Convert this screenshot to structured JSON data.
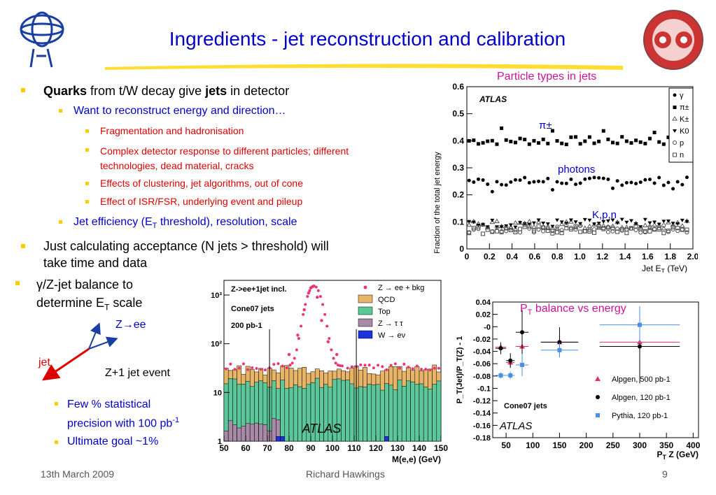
{
  "slide": {
    "title": "Ingredients - jet reconstruction and calibration",
    "footer": {
      "date": "13th March 2009",
      "author": "Richard Hawkings",
      "page": "9"
    }
  },
  "bullets": {
    "b1_bold": "Quarks",
    "b1_mid": " from t/W decay give ",
    "b1_bold2": "jets",
    "b1_end": " in detector",
    "b2": "Want to reconstruct energy and direction…",
    "b3a": "Fragmentation and hadronisation",
    "b3b_line1": "Complex detector response to different particles; different",
    "b3b_line2": "technologies, dead material, cracks",
    "b3c": "Effects of clustering, jet algorithms, out of cone",
    "b3d": "Effect of ISR/FSR, underlying event and pileup",
    "b4_pre": "Jet efficiency (E",
    "b4_sub": "T",
    "b4_post": " threshold), resolution, scale",
    "b5_line1": "Just calculating acceptance (N jets > threshold) will",
    "b5_line2": "take time and data",
    "b6_line1": "γ/Z-jet balance to",
    "b6_line2_pre": "determine E",
    "b6_line2_sub": "T",
    "b6_line2_post": " scale",
    "b7_line1": "Few % statistical",
    "b7_line2": "precision with 100 pb",
    "b7_sup": "-1",
    "b8": "Ultimate goal ~1%"
  },
  "sketch": {
    "zee": "Z→ee",
    "jet": "jet",
    "caption": "Z+1 jet event"
  },
  "chart_data": [
    {
      "type": "scatter",
      "title": "Particle types in jets",
      "xlabel": "Jet E",
      "xlabel_sub": "T",
      "xlabel_unit": " (TeV)",
      "ylabel": "Fraction of the total jet energy",
      "xlim": [
        0,
        2.0
      ],
      "ylim": [
        0,
        0.6
      ],
      "xticks": [
        "0",
        "0.2",
        "0.4",
        "0.6",
        "0.8",
        "1.0",
        "1.2",
        "1.4",
        "1.6",
        "1.8",
        "2.0"
      ],
      "yticks": [
        "0",
        "0.1",
        "0.2",
        "0.3",
        "0.4",
        "0.5",
        "0.6"
      ],
      "atlas": "ATLAS",
      "annotations": {
        "pi": "π±",
        "photons": "photons",
        "kpn": "K,p,n"
      },
      "legend": [
        "γ",
        "π±",
        "K±",
        "K0",
        "p",
        "n"
      ],
      "series": [
        {
          "name": "π±",
          "mean": 0.4
        },
        {
          "name": "γ",
          "mean": 0.25
        },
        {
          "name": "K±",
          "mean": 0.09
        },
        {
          "name": "K0",
          "mean": 0.095
        },
        {
          "name": "p",
          "mean": 0.075
        },
        {
          "name": "n",
          "mean": 0.07
        }
      ]
    },
    {
      "type": "bar",
      "title": "Z->ee+1jet incl.",
      "sub1": "Cone07 jets",
      "sub2": "200 pb-1",
      "xlabel": "M(e,e) (GeV)",
      "xlim": [
        50,
        150
      ],
      "ylim": [
        1,
        2000
      ],
      "log_y": true,
      "xticks": [
        "50",
        "60",
        "70",
        "80",
        "90",
        "100",
        "110",
        "120",
        "130",
        "140",
        "150"
      ],
      "yticks": [
        "1",
        "10",
        "10²",
        "10³"
      ],
      "atlas": "ATLAS",
      "legend": [
        "Z → ee + bkg",
        "QCD",
        "Top",
        "Z → τ τ",
        "W → eν"
      ],
      "colors": {
        "qcd": "#e8b468",
        "top": "#5cc899",
        "ztautau": "#a68aa6",
        "wenu": "#1a33dd",
        "points": "#ee3377"
      },
      "peak_points": [
        {
          "x": 80,
          "y": 60
        },
        {
          "x": 84,
          "y": 150
        },
        {
          "x": 87,
          "y": 500
        },
        {
          "x": 89,
          "y": 1100
        },
        {
          "x": 90,
          "y": 1400
        },
        {
          "x": 91,
          "y": 1500
        },
        {
          "x": 93,
          "y": 900
        },
        {
          "x": 95,
          "y": 300
        },
        {
          "x": 98,
          "y": 110
        },
        {
          "x": 102,
          "y": 60
        }
      ]
    },
    {
      "type": "scatter",
      "title": "P",
      "title_sub": "T",
      "title_post": " balance vs energy",
      "ylabel": "P_T(Jet)/P_T(Z) - 1",
      "xlabel": "P",
      "xlabel_sub": "T",
      "xlabel_post": " Z (GeV)",
      "xlim": [
        25,
        410
      ],
      "ylim": [
        -0.18,
        0.04
      ],
      "xticks": [
        "50",
        "100",
        "150",
        "200",
        "250",
        "300",
        "350",
        "400"
      ],
      "yticks": [
        "0.04",
        "0.02",
        "-0",
        "-0.02",
        "-0.04",
        "-0.06",
        "-0.08",
        "-0.1",
        "-0.12",
        "-0.14",
        "-0.16",
        "-0.18"
      ],
      "atlas": "ATLAS",
      "jets_label": "Cone07 jets",
      "series": [
        {
          "name": "Alpgen, 500 pb-1",
          "color": "#e0306e",
          "points": [
            {
              "x": 40,
              "y": -0.033
            },
            {
              "x": 58,
              "y": -0.058
            },
            {
              "x": 80,
              "y": -0.032
            },
            {
              "x": 150,
              "y": -0.025
            },
            {
              "x": 300,
              "y": -0.025
            }
          ]
        },
        {
          "name": "Alpgen, 120 pb-1",
          "color": "#000000",
          "points": [
            {
              "x": 40,
              "y": -0.035
            },
            {
              "x": 58,
              "y": -0.055
            },
            {
              "x": 80,
              "y": -0.009
            },
            {
              "x": 150,
              "y": -0.025
            },
            {
              "x": 300,
              "y": -0.032
            }
          ]
        },
        {
          "name": "Pythia, 120 pb-1",
          "color": "#4d8fe6",
          "points": [
            {
              "x": 40,
              "y": -0.079
            },
            {
              "x": 58,
              "y": -0.079
            },
            {
              "x": 80,
              "y": -0.062
            },
            {
              "x": 150,
              "y": -0.038
            },
            {
              "x": 300,
              "y": 0.003
            }
          ]
        }
      ]
    }
  ]
}
